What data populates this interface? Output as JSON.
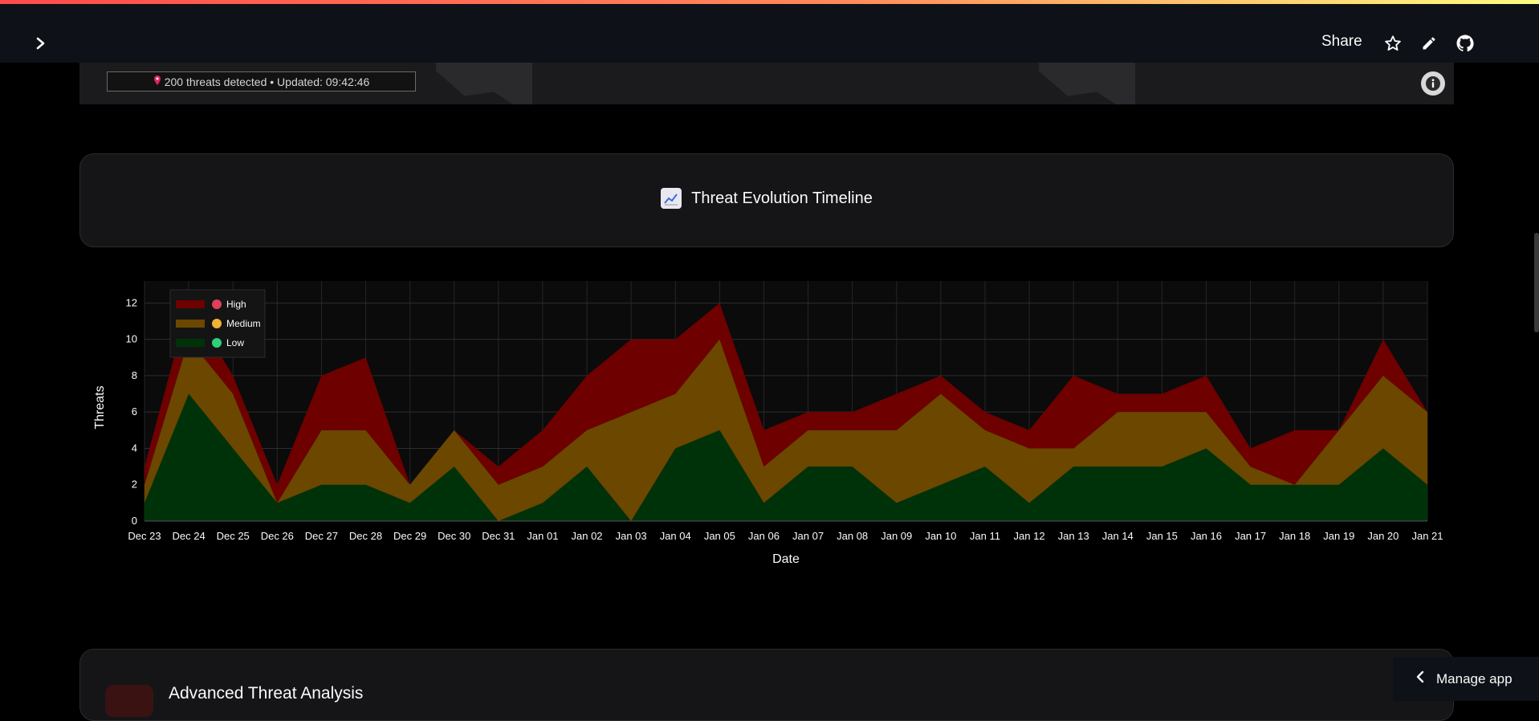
{
  "header": {
    "share_label": "Share",
    "icons": [
      "chevron-right-icon",
      "star-icon",
      "pencil-icon",
      "github-icon"
    ]
  },
  "map": {
    "status_text": "200 threats detected • Updated: 09:42:46",
    "pin_icon": "pin-icon",
    "info_icon": "info-icon"
  },
  "timeline": {
    "title": "Threat Evolution Timeline",
    "icon": "chart-increasing-icon"
  },
  "analysis": {
    "title": "Advanced Threat Analysis"
  },
  "manage_app": {
    "label": "Manage app"
  },
  "colors": {
    "accent_red": "#ff4b4b",
    "high": "#6e0000",
    "medium": "#6b4700",
    "low": "#00320a",
    "background": "#000000"
  },
  "chart_data": {
    "type": "area",
    "stacked": true,
    "xlabel": "Date",
    "ylabel": "Threats",
    "ylim": [
      0,
      12.5
    ],
    "yticks": [
      0,
      2,
      4,
      6,
      8,
      10,
      12
    ],
    "grid": true,
    "legend_position": "top-left",
    "categories": [
      "Dec 23",
      "Dec 24",
      "Dec 25",
      "Dec 26",
      "Dec 27",
      "Dec 28",
      "Dec 29",
      "Dec 30",
      "Dec 31",
      "Jan 01",
      "Jan 02",
      "Jan 03",
      "Jan 04",
      "Jan 05",
      "Jan 06",
      "Jan 07",
      "Jan 08",
      "Jan 09",
      "Jan 10",
      "Jan 11",
      "Jan 12",
      "Jan 13",
      "Jan 14",
      "Jan 15",
      "Jan 16",
      "Jan 17",
      "Jan 18",
      "Jan 19",
      "Jan 20",
      "Jan 21"
    ],
    "series": [
      {
        "name": "Low",
        "color": "#00320a",
        "values": [
          1,
          7,
          4,
          1,
          2,
          2,
          1,
          3,
          0,
          1,
          3,
          0,
          4,
          5,
          1,
          3,
          3,
          1,
          2,
          3,
          1,
          3,
          3,
          3,
          4,
          2,
          2,
          2,
          4,
          2
        ]
      },
      {
        "name": "Medium",
        "color": "#6b4700",
        "values": [
          1,
          3,
          3,
          0,
          3,
          3,
          1,
          2,
          2,
          2,
          2,
          6,
          3,
          5,
          2,
          2,
          2,
          4,
          5,
          2,
          3,
          1,
          3,
          3,
          2,
          1,
          0,
          3,
          4,
          4
        ]
      },
      {
        "name": "High",
        "color": "#6e0000",
        "values": [
          1,
          2,
          1,
          1,
          3,
          4,
          0,
          0,
          1,
          2,
          3,
          4,
          3,
          2,
          2,
          1,
          1,
          2,
          1,
          1,
          1,
          4,
          1,
          1,
          2,
          1,
          3,
          0,
          2,
          0
        ]
      }
    ]
  }
}
